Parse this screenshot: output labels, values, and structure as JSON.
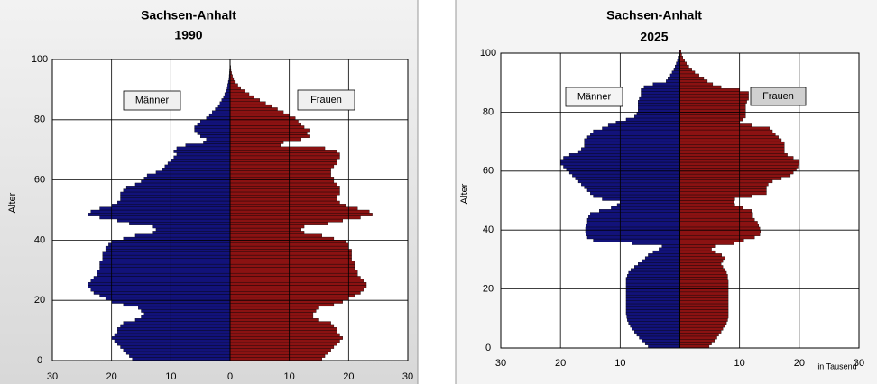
{
  "chart_data": [
    {
      "type": "pyramid",
      "title": "Sachsen-Anhalt",
      "subtitle": "1990",
      "y_label": "Alter",
      "categories": [
        0,
        1,
        2,
        3,
        4,
        5,
        6,
        7,
        8,
        9,
        10,
        11,
        12,
        13,
        14,
        15,
        16,
        17,
        18,
        19,
        20,
        21,
        22,
        23,
        24,
        25,
        26,
        27,
        28,
        29,
        30,
        31,
        32,
        33,
        34,
        35,
        36,
        37,
        38,
        39,
        40,
        41,
        42,
        43,
        44,
        45,
        46,
        47,
        48,
        49,
        50,
        51,
        52,
        53,
        54,
        55,
        56,
        57,
        58,
        59,
        60,
        61,
        62,
        63,
        64,
        65,
        66,
        67,
        68,
        69,
        70,
        71,
        72,
        73,
        74,
        75,
        76,
        77,
        78,
        79,
        80,
        81,
        82,
        83,
        84,
        85,
        86,
        87,
        88,
        89,
        90,
        91,
        92,
        93,
        94,
        95,
        96,
        97,
        98,
        99,
        100
      ],
      "series": [
        {
          "name": "Männer",
          "color": "#12127a",
          "side": "left",
          "values": [
            16.5,
            17,
            17.5,
            18,
            18.5,
            19,
            19.5,
            20,
            19.5,
            19,
            19,
            18.5,
            18,
            16,
            15,
            14.5,
            15,
            15.5,
            18,
            20,
            21,
            22,
            23,
            23.5,
            24,
            24,
            23.5,
            23,
            22.5,
            22.5,
            22,
            22,
            22,
            21.5,
            21.5,
            21.5,
            21,
            21,
            20.5,
            20,
            18,
            16,
            13,
            12.5,
            13,
            17,
            19,
            22,
            24,
            23.5,
            22,
            20,
            19,
            18.5,
            18.5,
            18.5,
            18,
            17.5,
            16,
            15,
            14.5,
            14,
            12.5,
            11.5,
            11,
            10.5,
            10,
            9.5,
            9,
            9.5,
            9,
            7.5,
            4.5,
            4,
            5,
            5.5,
            6,
            6,
            5.5,
            5,
            4,
            3.5,
            3,
            2.5,
            2,
            1.7,
            1.4,
            1.1,
            0.9,
            0.7,
            0.5,
            0.4,
            0.3,
            0.2,
            0.15,
            0.1,
            0.08,
            0.05,
            0.03,
            0.02,
            0
          ]
        },
        {
          "name": "Frauen",
          "color": "#8b1212",
          "side": "right",
          "values": [
            15.5,
            16,
            16.5,
            17,
            17.5,
            18,
            18.5,
            19,
            18.5,
            18,
            18,
            17.5,
            17,
            15,
            14,
            14,
            14.5,
            15,
            17.5,
            19,
            20,
            21,
            22,
            22.5,
            23,
            23,
            22.5,
            22,
            21.5,
            21.5,
            21,
            21,
            21,
            20.5,
            20.5,
            20.5,
            20.5,
            20,
            20,
            19.5,
            17.5,
            15.5,
            12.5,
            12,
            12.5,
            16.5,
            19,
            22,
            24,
            23.5,
            21.5,
            19.5,
            18.5,
            18,
            18,
            18.5,
            18.5,
            18.5,
            18,
            17.5,
            17.5,
            17,
            17,
            17,
            17.5,
            18,
            18,
            18.5,
            18.5,
            18,
            16,
            8.5,
            9,
            12,
            13.5,
            13,
            13.5,
            12.5,
            12,
            11.5,
            11,
            10,
            9,
            8,
            7,
            6,
            5,
            4,
            3.2,
            2.5,
            1.8,
            1.3,
            0.9,
            0.6,
            0.4,
            0.25,
            0.15,
            0.1,
            0.05,
            0.03,
            0
          ]
        }
      ],
      "xlim": [
        -30,
        30
      ],
      "xticks": [
        {
          "value": -30,
          "label": "30"
        },
        {
          "value": -20,
          "label": "20"
        },
        {
          "value": -10,
          "label": "10"
        },
        0,
        10,
        20,
        30
      ],
      "ylim": [
        0,
        100
      ],
      "yticks": [
        0,
        20,
        40,
        60,
        80,
        100
      ],
      "grid": true
    },
    {
      "type": "pyramid",
      "title": "Sachsen-Anhalt",
      "subtitle": "2025",
      "y_label": "Alter",
      "x_label": "in Tausend",
      "categories": [
        0,
        1,
        2,
        3,
        4,
        5,
        6,
        7,
        8,
        9,
        10,
        11,
        12,
        13,
        14,
        15,
        16,
        17,
        18,
        19,
        20,
        21,
        22,
        23,
        24,
        25,
        26,
        27,
        28,
        29,
        30,
        31,
        32,
        33,
        34,
        35,
        36,
        37,
        38,
        39,
        40,
        41,
        42,
        43,
        44,
        45,
        46,
        47,
        48,
        49,
        50,
        51,
        52,
        53,
        54,
        55,
        56,
        57,
        58,
        59,
        60,
        61,
        62,
        63,
        64,
        65,
        66,
        67,
        68,
        69,
        70,
        71,
        72,
        73,
        74,
        75,
        76,
        77,
        78,
        79,
        80,
        81,
        82,
        83,
        84,
        85,
        86,
        87,
        88,
        89,
        90,
        91,
        92,
        93,
        94,
        95,
        96,
        97,
        98,
        99,
        100
      ],
      "series": [
        {
          "name": "Männer",
          "color": "#12127a",
          "side": "left",
          "values": [
            5.3,
            5.8,
            6.3,
            6.8,
            7.2,
            7.6,
            8,
            8.3,
            8.6,
            8.8,
            8.9,
            9,
            9,
            9,
            9,
            9,
            9,
            9,
            9,
            9,
            9,
            9,
            9,
            9,
            8.8,
            8.6,
            8.2,
            7.6,
            7,
            6.3,
            5.8,
            5.3,
            4.5,
            3.5,
            3,
            8,
            14.5,
            15.5,
            15.7,
            15.8,
            15.8,
            15.7,
            15.5,
            15.5,
            15.3,
            15,
            13.5,
            11.5,
            10.5,
            10,
            13,
            14.5,
            15,
            15.5,
            16,
            16.5,
            17,
            17.5,
            18,
            18.5,
            19,
            19.5,
            20,
            20,
            19.5,
            18.5,
            17,
            16.5,
            16,
            16,
            16,
            15.5,
            15,
            14.5,
            13,
            12,
            10.7,
            9,
            7.6,
            7.2,
            7,
            7,
            7,
            7,
            6.8,
            6.5,
            6.5,
            6.5,
            6,
            4.5,
            2.3,
            2,
            1.6,
            1.3,
            1,
            0.8,
            0.6,
            0.4,
            0.3,
            0.2,
            0.1
          ]
        },
        {
          "name": "Frauen",
          "color": "#8b1212",
          "side": "right",
          "values": [
            4.9,
            5.3,
            5.8,
            6.2,
            6.5,
            6.9,
            7.2,
            7.5,
            7.8,
            8,
            8.1,
            8.1,
            8.1,
            8.1,
            8.1,
            8.1,
            8.1,
            8.1,
            8.1,
            8.1,
            8.1,
            8.1,
            8.1,
            8,
            8,
            7.8,
            7.5,
            7.2,
            6.9,
            7.2,
            7.6,
            7,
            6,
            5.3,
            6,
            9,
            10.7,
            12.5,
            13.4,
            13.5,
            13.4,
            13.2,
            13,
            12.5,
            12.2,
            12.2,
            12,
            10.5,
            9.2,
            9,
            9.2,
            12,
            14.5,
            14.5,
            14.5,
            14.8,
            15.5,
            17,
            18.5,
            19,
            19.5,
            19.8,
            20,
            20,
            19,
            18,
            17.5,
            17.5,
            17.5,
            17.5,
            17,
            16.5,
            16,
            15.5,
            15,
            12,
            10,
            10.5,
            11,
            11,
            11,
            11,
            11,
            11.2,
            11.5,
            11.5,
            11.5,
            10,
            6.9,
            5.5,
            4.6,
            4,
            3.2,
            2.5,
            2,
            1.5,
            1.1,
            0.8,
            0.5,
            0.3,
            0.2
          ]
        }
      ],
      "xlim": [
        -30,
        30
      ],
      "xticks": [
        {
          "value": -30,
          "label": "30"
        },
        {
          "value": -20,
          "label": "20"
        },
        {
          "value": -10,
          "label": "10"
        },
        10,
        20,
        30
      ],
      "ylim": [
        0,
        100
      ],
      "yticks": [
        0,
        20,
        40,
        60,
        80,
        100
      ],
      "grid": true
    }
  ]
}
